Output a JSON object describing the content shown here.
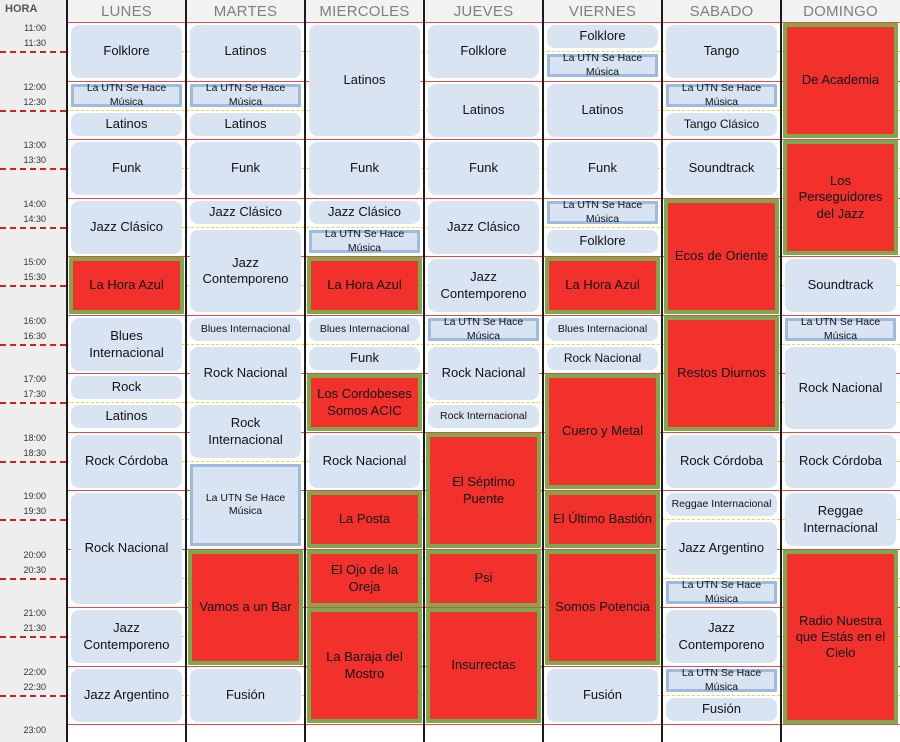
{
  "header": {
    "hour_label": "HORA",
    "days": [
      "LUNES",
      "MARTES",
      "MIERCOLES",
      "JUEVES",
      "VIERNES",
      "SABADO",
      "DOMINGO"
    ]
  },
  "times": [
    "11:00",
    "11:30",
    "12:00",
    "12:30",
    "13:00",
    "13:30",
    "14:00",
    "14:30",
    "15:00",
    "15:30",
    "16:00",
    "16:30",
    "17:00",
    "17:30",
    "18:00",
    "18:30",
    "19:00",
    "19:30",
    "20:00",
    "20:30",
    "21:00",
    "21:30",
    "22:00",
    "22:30",
    "23:00"
  ],
  "colors": {
    "program_fill": "#d9e4f2",
    "featured_fill": "#f2312d",
    "featured_border": "#7ea84b",
    "boxed_border": "#9ebadf",
    "hour_line": "#e34b4b",
    "half_hour_line": "#e8d64a"
  },
  "events": [
    {
      "day": 0,
      "start": 0,
      "end": 1,
      "title": "Folklore",
      "style": "light"
    },
    {
      "day": 0,
      "start": 1,
      "end": 1.5,
      "title": "La UTN Se Hace Música",
      "style": "box"
    },
    {
      "day": 0,
      "start": 1.5,
      "end": 2,
      "title": "Latinos",
      "style": "light"
    },
    {
      "day": 0,
      "start": 2,
      "end": 3,
      "title": "Funk",
      "style": "light"
    },
    {
      "day": 0,
      "start": 3,
      "end": 4,
      "title": "Jazz Clásico",
      "style": "light"
    },
    {
      "day": 0,
      "start": 4,
      "end": 5,
      "title": "La Hora Azul",
      "style": "red"
    },
    {
      "day": 0,
      "start": 5,
      "end": 6,
      "title": "Blues Internacional",
      "style": "light"
    },
    {
      "day": 0,
      "start": 6,
      "end": 6.5,
      "title": "Rock",
      "style": "light"
    },
    {
      "day": 0,
      "start": 6.5,
      "end": 7,
      "title": "Latinos",
      "style": "light"
    },
    {
      "day": 0,
      "start": 7,
      "end": 8,
      "title": "Rock Córdoba",
      "style": "light"
    },
    {
      "day": 0,
      "start": 8,
      "end": 10,
      "title": "Rock Nacional",
      "style": "light"
    },
    {
      "day": 0,
      "start": 10,
      "end": 11,
      "title": "Jazz Contemporeno",
      "style": "light"
    },
    {
      "day": 0,
      "start": 11,
      "end": 12,
      "title": "Jazz Argentino",
      "style": "light"
    },
    {
      "day": 1,
      "start": 0,
      "end": 1,
      "title": "Latinos",
      "style": "light"
    },
    {
      "day": 1,
      "start": 1,
      "end": 1.5,
      "title": "La UTN Se Hace Música",
      "style": "box"
    },
    {
      "day": 1,
      "start": 1.5,
      "end": 2,
      "title": "Latinos",
      "style": "light"
    },
    {
      "day": 1,
      "start": 2,
      "end": 3,
      "title": "Funk",
      "style": "light"
    },
    {
      "day": 1,
      "start": 3,
      "end": 3.5,
      "title": "Jazz Clásico",
      "style": "light"
    },
    {
      "day": 1,
      "start": 3.5,
      "end": 5,
      "title": "Jazz Contemporeno",
      "style": "light"
    },
    {
      "day": 1,
      "start": 5,
      "end": 5.5,
      "title": "Blues Internacional",
      "style": "light"
    },
    {
      "day": 1,
      "start": 5.5,
      "end": 6.5,
      "title": "Rock Nacional",
      "style": "light"
    },
    {
      "day": 1,
      "start": 6.5,
      "end": 7.5,
      "title": "Rock Internacional",
      "style": "light"
    },
    {
      "day": 1,
      "start": 7.5,
      "end": 9,
      "title": "La UTN Se Hace Música",
      "style": "box"
    },
    {
      "day": 1,
      "start": 9,
      "end": 11,
      "title": "Vamos a un Bar",
      "style": "red"
    },
    {
      "day": 1,
      "start": 11,
      "end": 12,
      "title": "Fusión",
      "style": "light"
    },
    {
      "day": 2,
      "start": 0,
      "end": 2,
      "title": "Latinos",
      "style": "light"
    },
    {
      "day": 2,
      "start": 2,
      "end": 3,
      "title": "Funk",
      "style": "light"
    },
    {
      "day": 2,
      "start": 3,
      "end": 3.5,
      "title": "Jazz Clásico",
      "style": "light"
    },
    {
      "day": 2,
      "start": 3.5,
      "end": 4,
      "title": "La UTN Se Hace Música",
      "style": "box"
    },
    {
      "day": 2,
      "start": 4,
      "end": 5,
      "title": "La Hora Azul",
      "style": "red"
    },
    {
      "day": 2,
      "start": 5,
      "end": 5.5,
      "title": "Blues Internacional",
      "style": "light"
    },
    {
      "day": 2,
      "start": 5.5,
      "end": 6,
      "title": "Funk",
      "style": "light"
    },
    {
      "day": 2,
      "start": 6,
      "end": 7,
      "title": "Los Cordobeses Somos ACIC",
      "style": "red"
    },
    {
      "day": 2,
      "start": 7,
      "end": 8,
      "title": "Rock Nacional",
      "style": "light"
    },
    {
      "day": 2,
      "start": 8,
      "end": 9,
      "title": "La Posta",
      "style": "red"
    },
    {
      "day": 2,
      "start": 9,
      "end": 10,
      "title": "El Ojo de la Oreja",
      "style": "red"
    },
    {
      "day": 2,
      "start": 10,
      "end": 12,
      "title": "La Baraja del Mostro",
      "style": "red"
    },
    {
      "day": 3,
      "start": 0,
      "end": 1,
      "title": "Folklore",
      "style": "light"
    },
    {
      "day": 3,
      "start": 1,
      "end": 2,
      "title": "Latinos",
      "style": "light"
    },
    {
      "day": 3,
      "start": 2,
      "end": 3,
      "title": "Funk",
      "style": "light"
    },
    {
      "day": 3,
      "start": 3,
      "end": 4,
      "title": "Jazz Clásico",
      "style": "light"
    },
    {
      "day": 3,
      "start": 4,
      "end": 5,
      "title": "Jazz Contemporeno",
      "style": "light"
    },
    {
      "day": 3,
      "start": 5,
      "end": 5.5,
      "title": "La UTN Se Hace Música",
      "style": "box"
    },
    {
      "day": 3,
      "start": 5.5,
      "end": 6.5,
      "title": "Rock Nacional",
      "style": "light"
    },
    {
      "day": 3,
      "start": 6.5,
      "end": 7,
      "title": "Rock Internacional",
      "style": "light"
    },
    {
      "day": 3,
      "start": 7,
      "end": 9,
      "title": "El Séptimo Puente",
      "style": "red"
    },
    {
      "day": 3,
      "start": 9,
      "end": 10,
      "title": "Psi",
      "style": "red"
    },
    {
      "day": 3,
      "start": 10,
      "end": 12,
      "title": "Insurrectas",
      "style": "red"
    },
    {
      "day": 4,
      "start": 0,
      "end": 0.5,
      "title": "Folklore",
      "style": "light"
    },
    {
      "day": 4,
      "start": 0.5,
      "end": 1,
      "title": "La UTN Se Hace Música",
      "style": "box"
    },
    {
      "day": 4,
      "start": 1,
      "end": 2,
      "title": "Latinos",
      "style": "light"
    },
    {
      "day": 4,
      "start": 2,
      "end": 3,
      "title": "Funk",
      "style": "light"
    },
    {
      "day": 4,
      "start": 3,
      "end": 3.5,
      "title": "La UTN Se Hace Música",
      "style": "box"
    },
    {
      "day": 4,
      "start": 3.5,
      "end": 4,
      "title": "Folklore",
      "style": "light"
    },
    {
      "day": 4,
      "start": 4,
      "end": 5,
      "title": "La Hora Azul",
      "style": "red"
    },
    {
      "day": 4,
      "start": 5,
      "end": 5.5,
      "title": "Blues Internacional",
      "style": "light"
    },
    {
      "day": 4,
      "start": 5.5,
      "end": 6,
      "title": "Rock Nacional",
      "style": "light"
    },
    {
      "day": 4,
      "start": 6,
      "end": 8,
      "title": "Cuero y Metal",
      "style": "red"
    },
    {
      "day": 4,
      "start": 8,
      "end": 9,
      "title": "El Último Bastión",
      "style": "red"
    },
    {
      "day": 4,
      "start": 9,
      "end": 11,
      "title": "Somos Potencia",
      "style": "red"
    },
    {
      "day": 4,
      "start": 11,
      "end": 12,
      "title": "Fusión",
      "style": "light"
    },
    {
      "day": 5,
      "start": 0,
      "end": 1,
      "title": "Tango",
      "style": "light"
    },
    {
      "day": 5,
      "start": 1,
      "end": 1.5,
      "title": "La UTN Se Hace Música",
      "style": "box"
    },
    {
      "day": 5,
      "start": 1.5,
      "end": 2,
      "title": "Tango Clásico",
      "style": "light"
    },
    {
      "day": 5,
      "start": 2,
      "end": 3,
      "title": "Soundtrack",
      "style": "light"
    },
    {
      "day": 5,
      "start": 3,
      "end": 5,
      "title": "Ecos de Oriente",
      "style": "red"
    },
    {
      "day": 5,
      "start": 5,
      "end": 7,
      "title": "Restos Diurnos",
      "style": "red"
    },
    {
      "day": 5,
      "start": 7,
      "end": 8,
      "title": "Rock Córdoba",
      "style": "light"
    },
    {
      "day": 5,
      "start": 8,
      "end": 8.5,
      "title": "Reggae Internacional",
      "style": "light"
    },
    {
      "day": 5,
      "start": 8.5,
      "end": 9.5,
      "title": "Jazz Argentino",
      "style": "light"
    },
    {
      "day": 5,
      "start": 9.5,
      "end": 10,
      "title": "La UTN Se Hace Música",
      "style": "box"
    },
    {
      "day": 5,
      "start": 10,
      "end": 11,
      "title": "Jazz Contemporeno",
      "style": "light"
    },
    {
      "day": 5,
      "start": 11,
      "end": 11.5,
      "title": "La UTN Se Hace Música",
      "style": "box"
    },
    {
      "day": 5,
      "start": 11.5,
      "end": 12,
      "title": "Fusión",
      "style": "light"
    },
    {
      "day": 6,
      "start": 0,
      "end": 2,
      "title": "De Academia",
      "style": "red"
    },
    {
      "day": 6,
      "start": 2,
      "end": 4,
      "title": "Los Perseguidores del Jazz",
      "style": "red"
    },
    {
      "day": 6,
      "start": 4,
      "end": 5,
      "title": "Soundtrack",
      "style": "light"
    },
    {
      "day": 6,
      "start": 5,
      "end": 5.5,
      "title": "La UTN Se Hace Música",
      "style": "box"
    },
    {
      "day": 6,
      "start": 5.5,
      "end": 7,
      "title": "Rock Nacional",
      "style": "light"
    },
    {
      "day": 6,
      "start": 7,
      "end": 8,
      "title": "Rock Córdoba",
      "style": "light"
    },
    {
      "day": 6,
      "start": 8,
      "end": 9,
      "title": "Reggae Internacional",
      "style": "light"
    },
    {
      "day": 6,
      "start": 9,
      "end": 12,
      "title": "Radio Nuestra que Estás en el Cielo",
      "style": "red"
    }
  ]
}
